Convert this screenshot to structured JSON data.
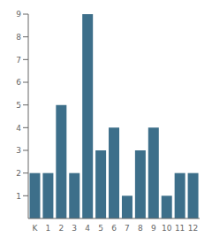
{
  "chart_data": {
    "type": "bar",
    "categories": [
      "K",
      "1",
      "2",
      "3",
      "4",
      "5",
      "6",
      "7",
      "8",
      "9",
      "10",
      "11",
      "12"
    ],
    "values": [
      2,
      2,
      5,
      2,
      9,
      3,
      4,
      1,
      3,
      4,
      1,
      2,
      2
    ],
    "color": "#3d6f8a",
    "ylim": [
      0,
      9
    ],
    "yticks": [
      1,
      2,
      3,
      4,
      5,
      6,
      7,
      8,
      9
    ],
    "grid": false
  }
}
